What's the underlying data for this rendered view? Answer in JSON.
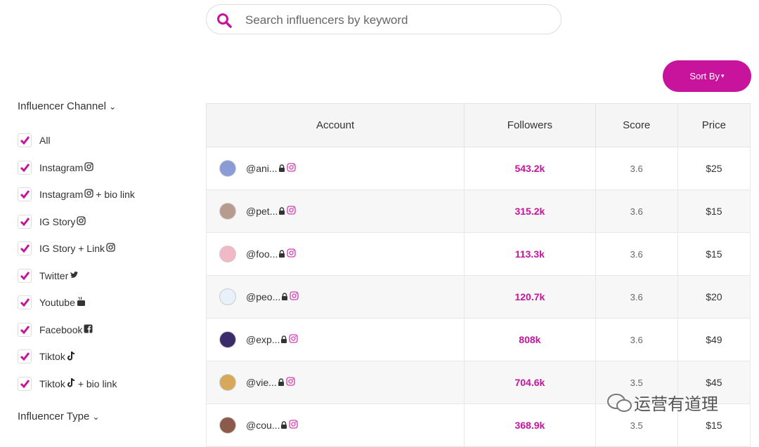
{
  "search": {
    "placeholder": "Search influencers by keyword"
  },
  "sort_button": "Sort By",
  "sidebar": {
    "channel_heading": "Influencer Channel",
    "filters": [
      {
        "label": "All"
      },
      {
        "label": "Instagram"
      },
      {
        "label": "Instagram",
        "suffix": "+ bio link"
      },
      {
        "label": "IG Story"
      },
      {
        "label": "IG Story + Link"
      },
      {
        "label": "Twitter"
      },
      {
        "label": "Youtube"
      },
      {
        "label": "Facebook"
      },
      {
        "label": "Tiktok"
      },
      {
        "label": "Tiktok",
        "suffix": "+ bio link"
      }
    ],
    "type_heading": "Influencer Type"
  },
  "table": {
    "headers": [
      "Account",
      "Followers",
      "Score",
      "Price"
    ],
    "rows": [
      [
        "@ani...",
        "543.2k",
        "3.6",
        "$25"
      ],
      [
        "@pet...",
        "315.2k",
        "3.6",
        "$15"
      ],
      [
        "@foo...",
        "113.3k",
        "3.6",
        "$15"
      ],
      [
        "@peo...",
        "120.7k",
        "3.6",
        "$20"
      ],
      [
        "@exp...",
        "808k",
        "3.6",
        "$49"
      ],
      [
        "@vie...",
        "704.6k",
        "3.5",
        "$45"
      ],
      [
        "@cou...",
        "368.9k",
        "3.5",
        "$15"
      ]
    ]
  },
  "watermark": "运营有道理"
}
